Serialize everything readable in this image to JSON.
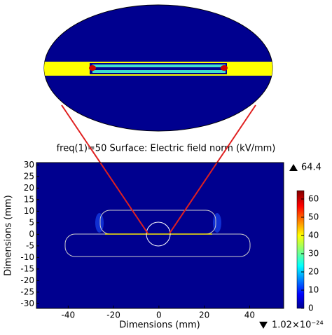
{
  "chart_data": {
    "type": "field",
    "title": "freq(1)=50    Surface: Electric field norm (kV/mm)",
    "xlabel": "Dimensions (mm)",
    "ylabel": "Dimensions (mm)",
    "xlim": [
      -54,
      55
    ],
    "ylim": [
      -32,
      31
    ],
    "xticks": [
      -40,
      -20,
      0,
      20,
      40
    ],
    "yticks": [
      30,
      25,
      20,
      15,
      10,
      5,
      0,
      -5,
      -10,
      -15,
      -20,
      -25,
      -30
    ],
    "clim": [
      0,
      64.6
    ],
    "cticks": [
      0,
      10,
      20,
      30,
      40,
      50,
      60
    ],
    "cmax": 64.4,
    "cmin": {
      "value": 1.02e-24,
      "label": "1.02×10⁻²⁴"
    }
  }
}
